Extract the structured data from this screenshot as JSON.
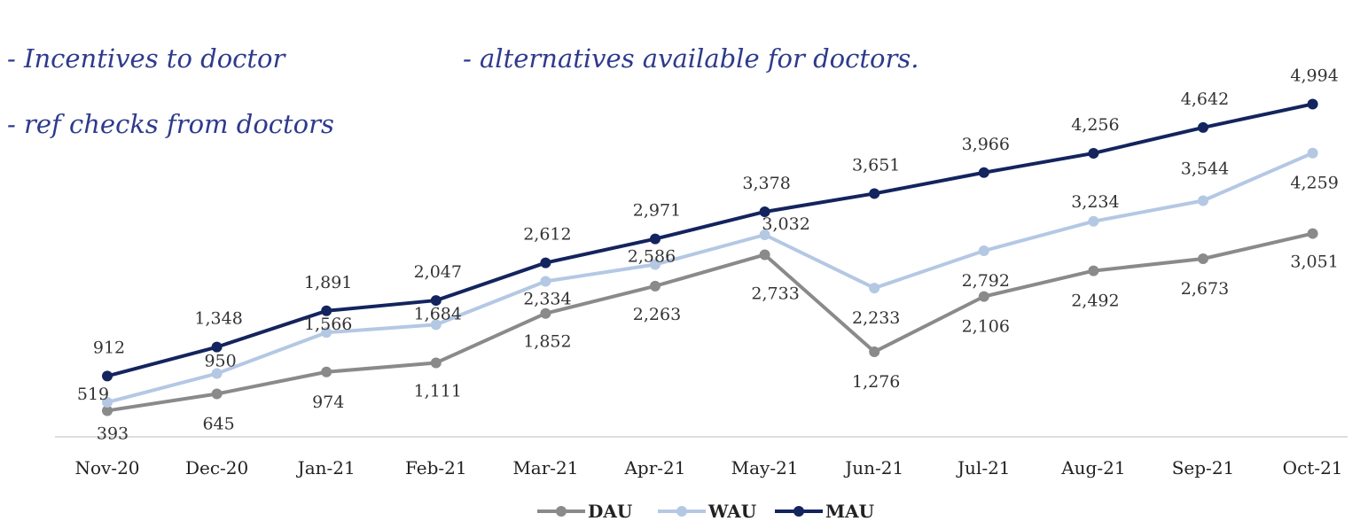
{
  "notes": [
    "- Incentives to doctor",
    "- alternatives available for doctors.",
    "- ref checks from doctors"
  ],
  "chart_data": {
    "type": "line",
    "title": "",
    "xlabel": "",
    "ylabel": "",
    "ylim": [
      0,
      5500
    ],
    "grid": false,
    "legend_position": "bottom",
    "categories": [
      "Nov-20",
      "Dec-20",
      "Jan-21",
      "Feb-21",
      "Mar-21",
      "Apr-21",
      "May-21",
      "Jun-21",
      "Jul-21",
      "Aug-21",
      "Sep-21",
      "Oct-21"
    ],
    "series": [
      {
        "name": "DAU",
        "color": "#8a8a8a",
        "values": [
          393,
          645,
          974,
          1111,
          1852,
          2263,
          2733,
          1276,
          2106,
          2492,
          2673,
          3051
        ],
        "labels": [
          "393",
          "645",
          "974",
          "1,111",
          "1,852",
          "2,263",
          "2,733",
          "1,276",
          "2,106",
          "2,492",
          "2,673",
          "3,051"
        ]
      },
      {
        "name": "WAU",
        "color": "#b4c8e4",
        "values": [
          519,
          950,
          1566,
          1684,
          2334,
          2586,
          3032,
          2233,
          2792,
          3234,
          3544,
          4259
        ],
        "labels": [
          "519",
          "950",
          "1,566",
          "1,684",
          "2,334",
          "2,586",
          "3,032",
          "2,233",
          "2,792",
          "3,234",
          "3,544",
          "4,259"
        ]
      },
      {
        "name": "MAU",
        "color": "#13245e",
        "values": [
          912,
          1348,
          1891,
          2047,
          2612,
          2971,
          3378,
          3651,
          3966,
          4256,
          4642,
          4994
        ],
        "labels": [
          "912",
          "1,348",
          "1,891",
          "2,047",
          "2,612",
          "2,971",
          "3,378",
          "3,651",
          "3,966",
          "4,256",
          "4,642",
          "4,994"
        ]
      }
    ]
  }
}
